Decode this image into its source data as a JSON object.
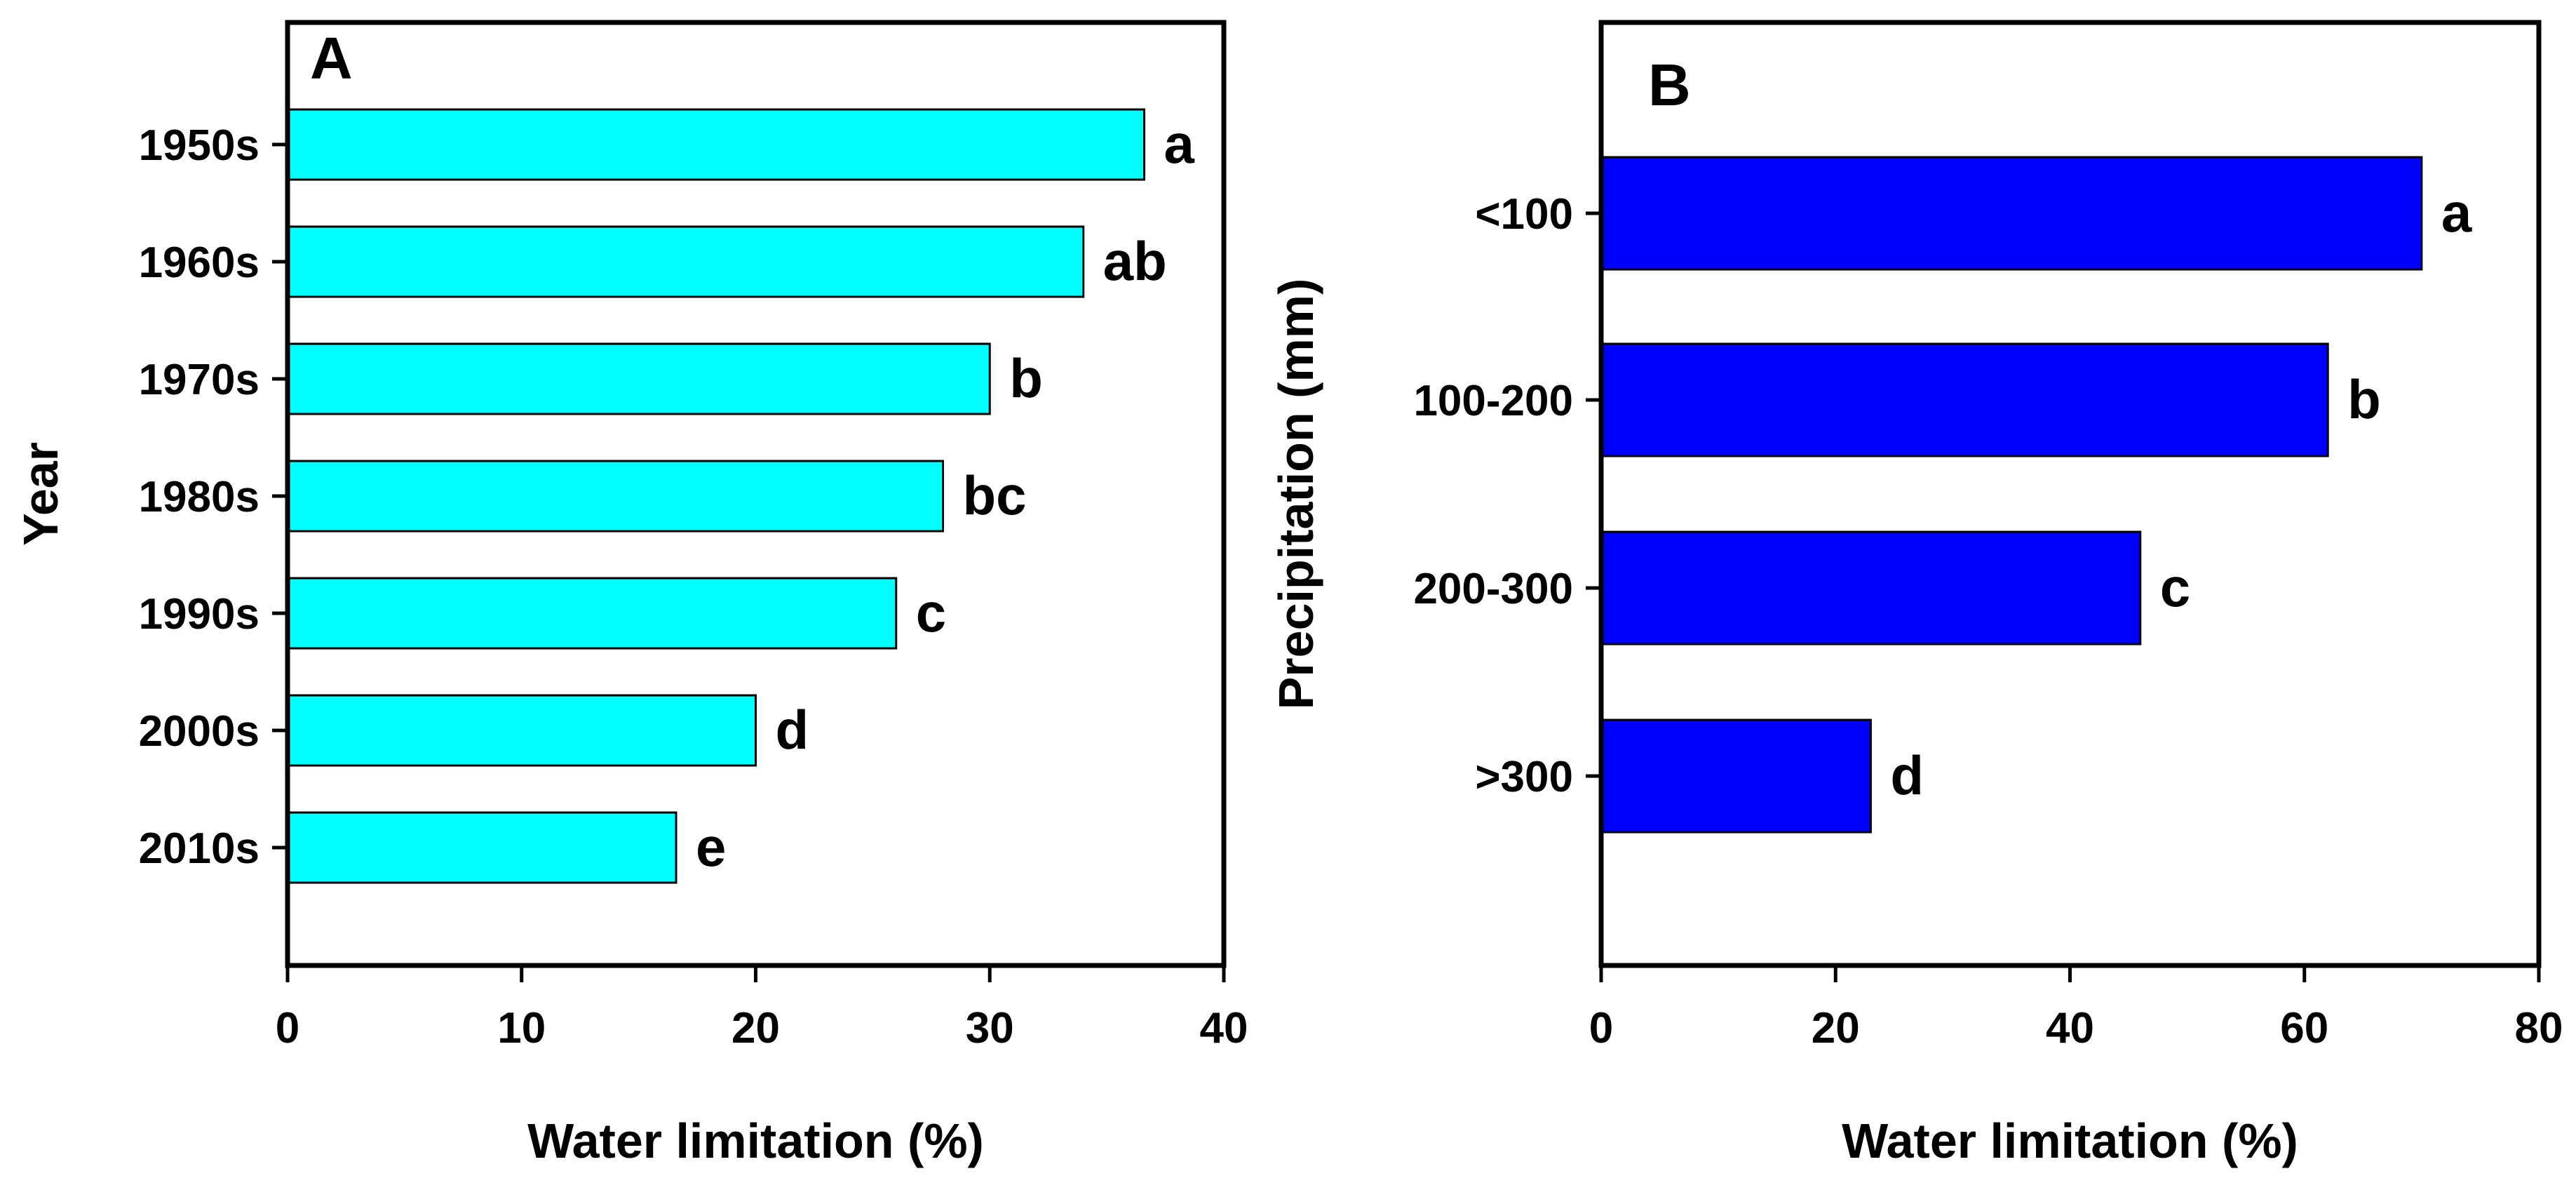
{
  "chart_data": [
    {
      "type": "bar",
      "orientation": "horizontal",
      "panel_label": "A",
      "categories": [
        "1950s",
        "1960s",
        "1970s",
        "1980s",
        "1990s",
        "2000s",
        "2010s"
      ],
      "values": [
        36.6,
        34.0,
        30.0,
        28.0,
        26.0,
        20.0,
        16.6
      ],
      "significance": [
        "a",
        "ab",
        "b",
        "bc",
        "c",
        "d",
        "e"
      ],
      "xlabel": "Water limitation (%)",
      "ylabel": "Year",
      "xlim": [
        0,
        40
      ],
      "xticks": [
        "0",
        "10",
        "20",
        "30",
        "40"
      ],
      "bar_color": "#00FFFF",
      "grid": false
    },
    {
      "type": "bar",
      "orientation": "horizontal",
      "panel_label": "B",
      "categories": [
        "<100",
        "100-200",
        "200-300",
        ">300"
      ],
      "values": [
        70.0,
        62.0,
        46.0,
        23.0
      ],
      "significance": [
        "a",
        "b",
        "c",
        "d"
      ],
      "xlabel": "Water limitation (%)",
      "ylabel": "Precipitation (mm)",
      "xlim": [
        0,
        80
      ],
      "xticks": [
        "0",
        "20",
        "40",
        "60",
        "80"
      ],
      "bar_color": "#0000FF",
      "grid": false
    }
  ]
}
